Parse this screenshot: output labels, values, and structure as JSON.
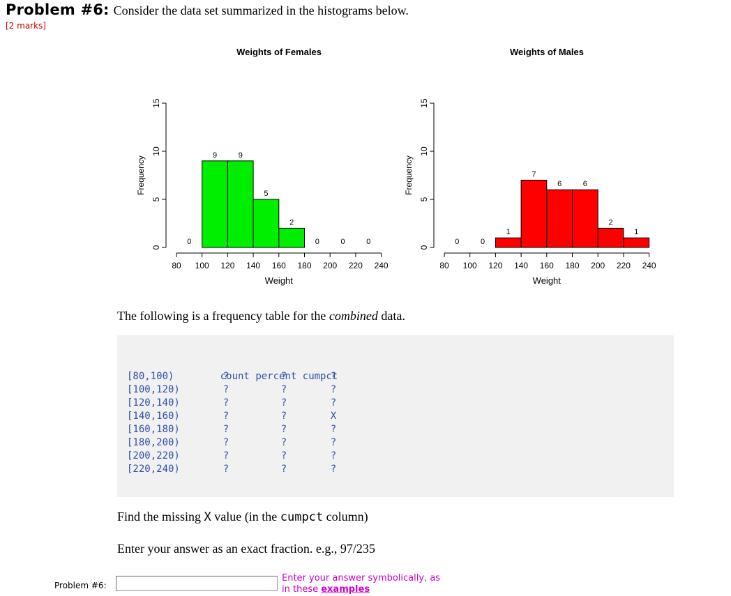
{
  "problem": {
    "number_label": "Problem #6:",
    "question": "Consider the data set summarized in the histograms below.",
    "marks": "[2 marks]"
  },
  "chart_data": [
    {
      "type": "bar",
      "title": "Weights of Females",
      "xlabel": "Weight",
      "ylabel": "Frequency",
      "bins": [
        [
          80,
          100
        ],
        [
          100,
          120
        ],
        [
          120,
          140
        ],
        [
          140,
          160
        ],
        [
          160,
          180
        ],
        [
          180,
          200
        ],
        [
          200,
          220
        ],
        [
          220,
          240
        ]
      ],
      "values": [
        0,
        9,
        9,
        5,
        2,
        0,
        0,
        0
      ],
      "value_labels": [
        "0",
        "9",
        "9",
        "5",
        "2",
        "0",
        "0",
        "0"
      ],
      "color": "#00ee00",
      "xticks": [
        "80",
        "100",
        "120",
        "140",
        "160",
        "180",
        "200",
        "220",
        "240"
      ],
      "yticks": [
        "0",
        "5",
        "10",
        "15"
      ],
      "ylim": [
        0,
        15
      ]
    },
    {
      "type": "bar",
      "title": "Weights of Males",
      "xlabel": "Weight",
      "ylabel": "Frequency",
      "bins": [
        [
          80,
          100
        ],
        [
          100,
          120
        ],
        [
          120,
          140
        ],
        [
          140,
          160
        ],
        [
          160,
          180
        ],
        [
          180,
          200
        ],
        [
          200,
          220
        ],
        [
          220,
          240
        ]
      ],
      "values": [
        0,
        0,
        1,
        7,
        6,
        6,
        2,
        1
      ],
      "value_labels": [
        "0",
        "0",
        "1",
        "7",
        "6",
        "6",
        "2",
        "1"
      ],
      "color": "#ff0000",
      "xticks": [
        "80",
        "100",
        "120",
        "140",
        "160",
        "180",
        "200",
        "220",
        "240"
      ],
      "yticks": [
        "0",
        "5",
        "10",
        "15"
      ],
      "ylim": [
        0,
        15
      ]
    }
  ],
  "table_intro": {
    "before": "The following is a frequency table for the ",
    "emph": "combined",
    "after": " data."
  },
  "freq_table": {
    "headers": [
      "count",
      "percent",
      "cumpct"
    ],
    "rows": [
      {
        "label": "[80,100)",
        "count": "?",
        "percent": "?",
        "cumpct": "?"
      },
      {
        "label": "[100,120)",
        "count": "?",
        "percent": "?",
        "cumpct": "?"
      },
      {
        "label": "[120,140)",
        "count": "?",
        "percent": "?",
        "cumpct": "?"
      },
      {
        "label": "[140,160)",
        "count": "?",
        "percent": "?",
        "cumpct": "X"
      },
      {
        "label": "[160,180)",
        "count": "?",
        "percent": "?",
        "cumpct": "?"
      },
      {
        "label": "[180,200)",
        "count": "?",
        "percent": "?",
        "cumpct": "?"
      },
      {
        "label": "[200,220)",
        "count": "?",
        "percent": "?",
        "cumpct": "?"
      },
      {
        "label": "[220,240)",
        "count": "?",
        "percent": "?",
        "cumpct": "?"
      }
    ]
  },
  "find": {
    "before": "Find the missing ",
    "x": "X",
    "middle": " value (in the ",
    "col": "cumpct",
    "after": " column)"
  },
  "instruction": "Enter your answer as an exact fraction. e.g., 97/235",
  "answer": {
    "label": "Problem #6:",
    "value": "",
    "hint_line1": "Enter your answer symbolically, as",
    "hint_line2_prefix": "in these ",
    "hint_link": "examples"
  }
}
